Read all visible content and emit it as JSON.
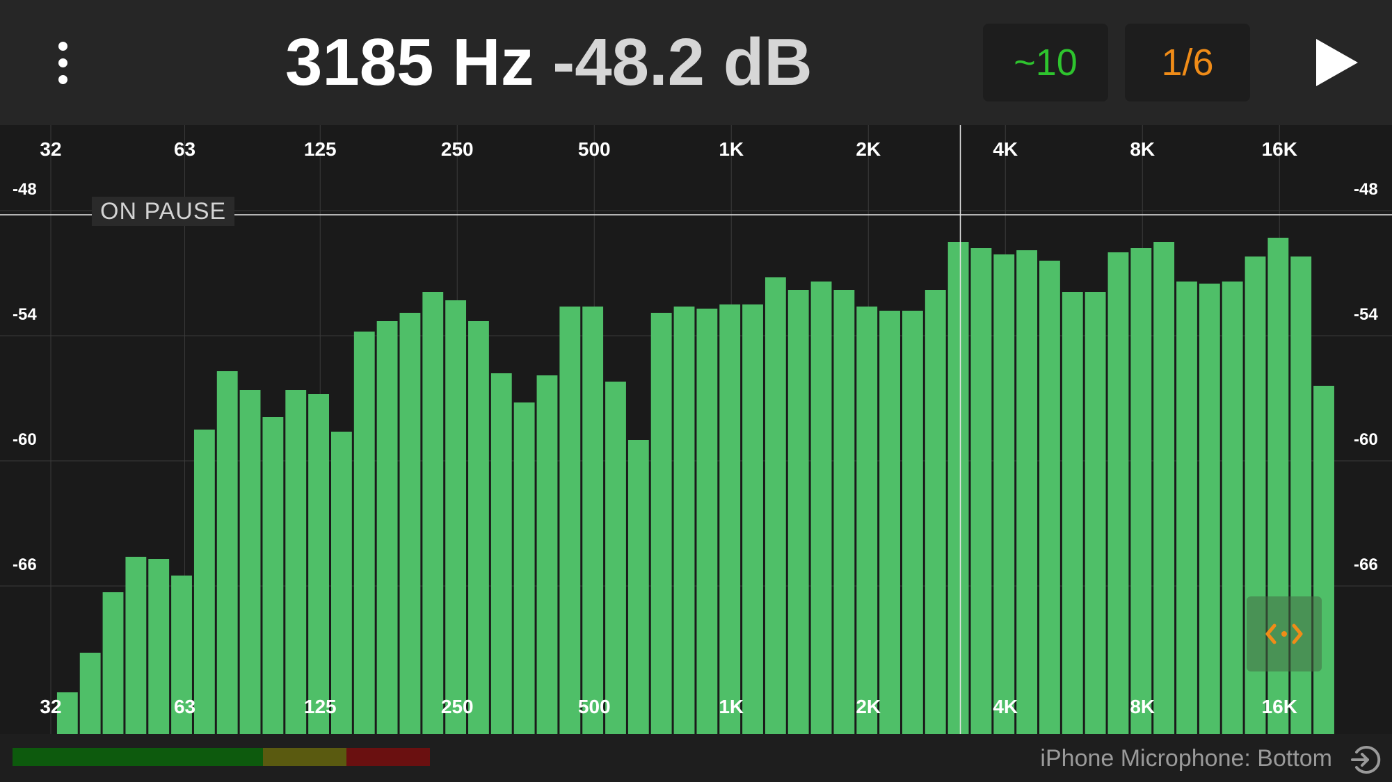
{
  "header": {
    "frequency_readout": "3185 Hz",
    "level_readout": "-48.2 dB",
    "averaging_label": "~10",
    "bandwidth_label": "1/6",
    "menu_icon": "more-vertical-icon",
    "play_icon": "play-icon"
  },
  "chart": {
    "status_badge": "ON PAUSE",
    "zoom_icon": "pan-arrows-icon",
    "colors": {
      "bar": "#4fbf68",
      "zoom_arrows": "#f08c18",
      "grid": "#3a3a3a"
    }
  },
  "footer": {
    "input_source": "iPhone Microphone: Bottom",
    "input_icon": "input-route-icon"
  },
  "chart_data": {
    "type": "bar",
    "x_scale": "log2",
    "x_ticks": [
      {
        "value": 32,
        "label": "32"
      },
      {
        "value": 63,
        "label": "63"
      },
      {
        "value": 125,
        "label": "125"
      },
      {
        "value": 250,
        "label": "250"
      },
      {
        "value": 500,
        "label": "500"
      },
      {
        "value": 1000,
        "label": "1K"
      },
      {
        "value": 2000,
        "label": "2K"
      },
      {
        "value": 4000,
        "label": "4K"
      },
      {
        "value": 8000,
        "label": "8K"
      },
      {
        "value": 16000,
        "label": "16K"
      }
    ],
    "y_ticks": [
      {
        "value": -48,
        "label": "-48"
      },
      {
        "value": -54,
        "label": "-54"
      },
      {
        "value": -60,
        "label": "-60"
      },
      {
        "value": -66,
        "label": "-66"
      }
    ],
    "ylim": [
      -71.5,
      -44.6
    ],
    "xlim": [
      27,
      22627
    ],
    "band_width_octaves": 0.1667,
    "bar_start_frequency": 34.8,
    "values": [
      -71.1,
      -69.2,
      -66.3,
      -64.6,
      -64.7,
      -65.5,
      -58.5,
      -55.7,
      -56.6,
      -57.9,
      -56.6,
      -56.8,
      -58.6,
      -53.8,
      -53.3,
      -52.9,
      -51.9,
      -52.3,
      -53.3,
      -55.8,
      -57.2,
      -55.9,
      -52.6,
      -52.6,
      -56.2,
      -59.0,
      -52.9,
      -52.6,
      -52.7,
      -52.5,
      -52.5,
      -51.2,
      -51.8,
      -51.4,
      -51.8,
      -52.6,
      -52.8,
      -52.8,
      -51.8,
      -49.5,
      -49.8,
      -50.1,
      -49.9,
      -50.4,
      -51.9,
      -51.9,
      -50.0,
      -49.8,
      -49.5,
      -51.4,
      -51.5,
      -51.4,
      -50.2,
      -49.3,
      -50.2,
      -56.4
    ],
    "cursor": {
      "frequency": 3185,
      "level": -48.2
    }
  }
}
